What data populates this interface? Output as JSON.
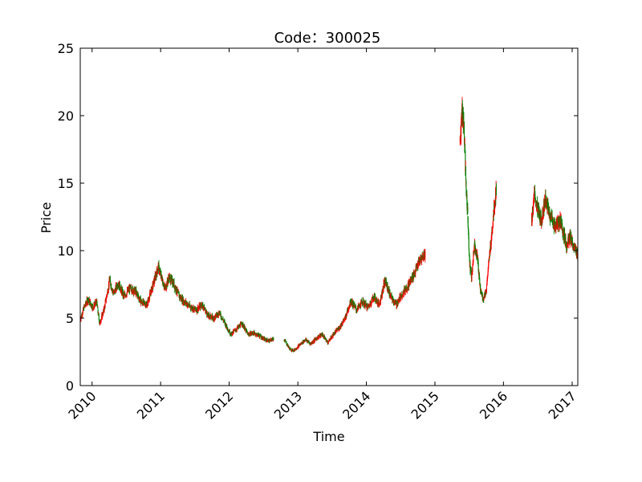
{
  "chart_data": {
    "type": "candlestick",
    "title": "Code：300025",
    "xlabel": "Time",
    "ylabel": "Price",
    "ylim": [
      0,
      25
    ],
    "xlim": [
      "2009-10-30",
      "2017-01-31"
    ],
    "yticks": [
      "0",
      "5",
      "10",
      "15",
      "20",
      "25"
    ],
    "xticks": [
      {
        "label": "2010",
        "date": "2010-01-01"
      },
      {
        "label": "2011",
        "date": "2011-01-01"
      },
      {
        "label": "2012",
        "date": "2012-01-01"
      },
      {
        "label": "2013",
        "date": "2013-01-01"
      },
      {
        "label": "2014",
        "date": "2014-01-01"
      },
      {
        "label": "2015",
        "date": "2015-01-01"
      },
      {
        "label": "2016",
        "date": "2016-01-01"
      },
      {
        "label": "2017",
        "date": "2017-01-01"
      }
    ],
    "up_color": "#ff0000",
    "down_color": "#008000",
    "grid": false,
    "price_path": [
      {
        "date": "2009-10-30",
        "close": 4.9
      },
      {
        "date": "2009-11-20",
        "close": 5.8
      },
      {
        "date": "2009-12-10",
        "close": 6.4
      },
      {
        "date": "2010-01-05",
        "close": 5.8
      },
      {
        "date": "2010-01-25",
        "close": 6.2
      },
      {
        "date": "2010-02-10",
        "close": 4.6
      },
      {
        "date": "2010-03-05",
        "close": 5.6
      },
      {
        "date": "2010-04-05",
        "close": 7.8
      },
      {
        "date": "2010-04-25",
        "close": 6.8
      },
      {
        "date": "2010-05-20",
        "close": 7.6
      },
      {
        "date": "2010-06-20",
        "close": 6.6
      },
      {
        "date": "2010-07-20",
        "close": 7.2
      },
      {
        "date": "2010-08-20",
        "close": 7.0
      },
      {
        "date": "2010-09-20",
        "close": 6.2
      },
      {
        "date": "2010-10-20",
        "close": 6.0
      },
      {
        "date": "2010-11-20",
        "close": 7.4
      },
      {
        "date": "2010-12-20",
        "close": 8.8
      },
      {
        "date": "2011-01-10",
        "close": 7.8
      },
      {
        "date": "2011-01-25",
        "close": 7.2
      },
      {
        "date": "2011-02-15",
        "close": 8.0
      },
      {
        "date": "2011-03-10",
        "close": 7.6
      },
      {
        "date": "2011-04-10",
        "close": 6.6
      },
      {
        "date": "2011-05-10",
        "close": 6.2
      },
      {
        "date": "2011-06-10",
        "close": 5.8
      },
      {
        "date": "2011-07-10",
        "close": 5.6
      },
      {
        "date": "2011-08-10",
        "close": 6.0
      },
      {
        "date": "2011-09-10",
        "close": 5.2
      },
      {
        "date": "2011-10-10",
        "close": 5.0
      },
      {
        "date": "2011-11-10",
        "close": 5.4
      },
      {
        "date": "2011-12-10",
        "close": 4.6
      },
      {
        "date": "2012-01-10",
        "close": 3.8
      },
      {
        "date": "2012-02-10",
        "close": 4.2
      },
      {
        "date": "2012-03-10",
        "close": 4.6
      },
      {
        "date": "2012-04-10",
        "close": 3.8
      },
      {
        "date": "2012-05-10",
        "close": 3.9
      },
      {
        "date": "2012-06-10",
        "close": 3.7
      },
      {
        "date": "2012-07-10",
        "close": 3.4
      },
      {
        "date": "2012-08-05",
        "close": 3.3
      },
      {
        "date": "2012-08-25",
        "close": 3.5
      },
      {
        "gap": true
      },
      {
        "date": "2012-10-20",
        "close": 3.4
      },
      {
        "date": "2012-11-20",
        "close": 2.7
      },
      {
        "date": "2012-12-10",
        "close": 2.6
      },
      {
        "date": "2013-01-10",
        "close": 3.0
      },
      {
        "date": "2013-02-10",
        "close": 3.4
      },
      {
        "date": "2013-03-10",
        "close": 3.1
      },
      {
        "date": "2013-04-10",
        "close": 3.5
      },
      {
        "date": "2013-05-10",
        "close": 3.8
      },
      {
        "date": "2013-06-10",
        "close": 3.2
      },
      {
        "date": "2013-07-10",
        "close": 3.8
      },
      {
        "date": "2013-08-10",
        "close": 4.3
      },
      {
        "date": "2013-09-10",
        "close": 5.0
      },
      {
        "date": "2013-10-10",
        "close": 6.3
      },
      {
        "date": "2013-11-10",
        "close": 5.6
      },
      {
        "date": "2013-12-10",
        "close": 6.2
      },
      {
        "date": "2014-01-10",
        "close": 5.8
      },
      {
        "date": "2014-02-10",
        "close": 6.6
      },
      {
        "date": "2014-03-10",
        "close": 6.0
      },
      {
        "date": "2014-04-10",
        "close": 7.8
      },
      {
        "date": "2014-05-10",
        "close": 6.6
      },
      {
        "date": "2014-06-10",
        "close": 6.0
      },
      {
        "date": "2014-07-10",
        "close": 6.8
      },
      {
        "date": "2014-08-10",
        "close": 7.4
      },
      {
        "date": "2014-09-10",
        "close": 8.2
      },
      {
        "date": "2014-10-10",
        "close": 9.2
      },
      {
        "date": "2014-11-10",
        "close": 9.8
      },
      {
        "gap": true
      },
      {
        "date": "2015-05-15",
        "close": 18.0
      },
      {
        "date": "2015-05-25",
        "close": 20.5
      },
      {
        "date": "2015-06-05",
        "close": 19.2
      },
      {
        "date": "2015-06-15",
        "close": 15.0
      },
      {
        "date": "2015-06-25",
        "close": 12.5
      },
      {
        "date": "2015-07-05",
        "close": 9.0
      },
      {
        "date": "2015-07-15",
        "close": 8.0
      },
      {
        "date": "2015-07-30",
        "close": 10.5
      },
      {
        "date": "2015-08-15",
        "close": 9.6
      },
      {
        "date": "2015-08-30",
        "close": 7.2
      },
      {
        "date": "2015-09-15",
        "close": 6.4
      },
      {
        "date": "2015-10-01",
        "close": 7.0
      },
      {
        "date": "2015-10-20",
        "close": 9.8
      },
      {
        "date": "2015-11-10",
        "close": 12.8
      },
      {
        "date": "2015-11-25",
        "close": 14.8
      },
      {
        "gap": true
      },
      {
        "date": "2016-05-30",
        "close": 12.2
      },
      {
        "date": "2016-06-15",
        "close": 14.2
      },
      {
        "date": "2016-07-01",
        "close": 13.0
      },
      {
        "date": "2016-07-20",
        "close": 12.2
      },
      {
        "date": "2016-08-10",
        "close": 13.8
      },
      {
        "date": "2016-09-01",
        "close": 12.8
      },
      {
        "date": "2016-10-01",
        "close": 11.8
      },
      {
        "date": "2016-11-01",
        "close": 12.2
      },
      {
        "date": "2016-12-01",
        "close": 10.4
      },
      {
        "date": "2016-12-20",
        "close": 11.0
      },
      {
        "date": "2017-01-10",
        "close": 10.2
      },
      {
        "date": "2017-01-31",
        "close": 9.8
      }
    ]
  }
}
